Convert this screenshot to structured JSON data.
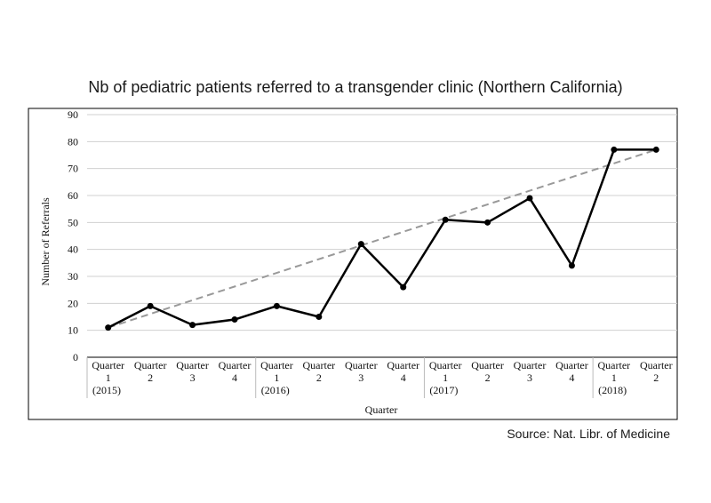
{
  "chart_data": {
    "type": "line",
    "title": "Nb of pediatric patients referred to a transgender clinic (Northern California)",
    "xlabel": "Quarter",
    "ylabel": "Number of Referrals",
    "ylim": [
      0,
      90
    ],
    "yticks": [
      0,
      10,
      20,
      30,
      40,
      50,
      60,
      70,
      80,
      90
    ],
    "grid": true,
    "categories": [
      {
        "line1": "Quarter",
        "line2": "1",
        "year": "(2015)"
      },
      {
        "line1": "Quarter",
        "line2": "2",
        "year": ""
      },
      {
        "line1": "Quarter",
        "line2": "3",
        "year": ""
      },
      {
        "line1": "Quarter",
        "line2": "4",
        "year": ""
      },
      {
        "line1": "Quarter",
        "line2": "1",
        "year": "(2016)"
      },
      {
        "line1": "Quarter",
        "line2": "2",
        "year": ""
      },
      {
        "line1": "Quarter",
        "line2": "3",
        "year": ""
      },
      {
        "line1": "Quarter",
        "line2": "4",
        "year": ""
      },
      {
        "line1": "Quarter",
        "line2": "1",
        "year": "(2017)"
      },
      {
        "line1": "Quarter",
        "line2": "2",
        "year": ""
      },
      {
        "line1": "Quarter",
        "line2": "3",
        "year": ""
      },
      {
        "line1": "Quarter",
        "line2": "4",
        "year": ""
      },
      {
        "line1": "Quarter",
        "line2": "1",
        "year": "(2018)"
      },
      {
        "line1": "Quarter",
        "line2": "2",
        "year": ""
      }
    ],
    "series": [
      {
        "values": [
          11,
          19,
          12,
          14,
          19,
          15,
          42,
          26,
          51,
          50,
          59,
          34,
          77,
          77
        ],
        "color": "#000000"
      }
    ],
    "trendline": {
      "style": "dashed",
      "color": "#999999",
      "start": 11,
      "end": 77
    }
  },
  "source": "Source: Nat. Libr. of Medicine"
}
